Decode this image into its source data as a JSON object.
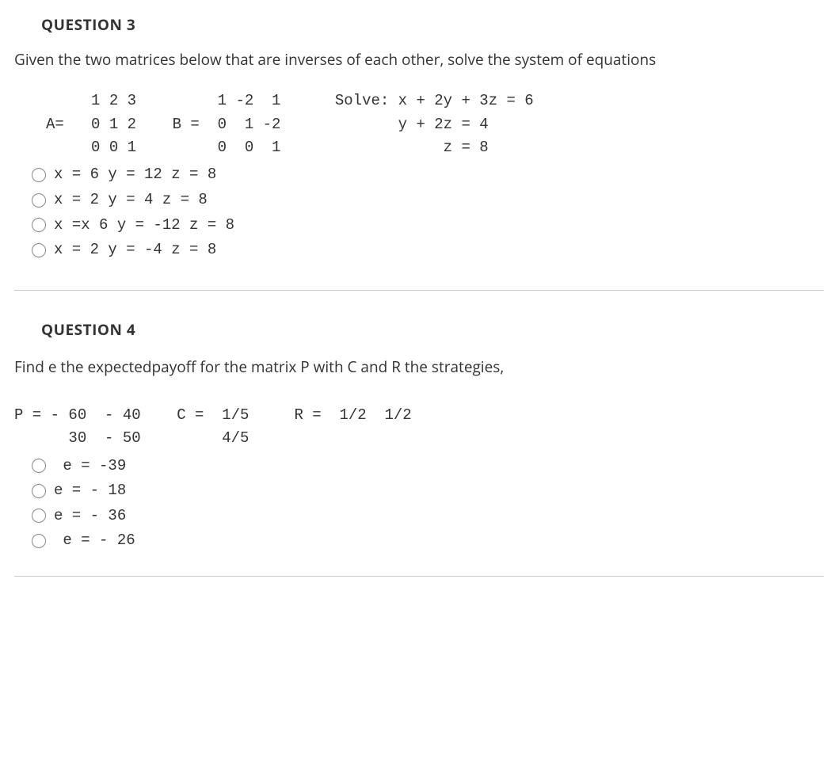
{
  "q3": {
    "title": "QUESTION 3",
    "prompt": "Given the two matrices below that are inverses of each other, solve the system of equations",
    "math_line1": "     1 2 3         1 -2  1      Solve: x + 2y + 3z = 6",
    "math_line2": "A=   0 1 2    B =  0  1 -2             y + 2z = 4",
    "math_line3": "     0 0 1         0  0  1                  z = 8",
    "options": [
      "x = 6 y = 12 z = 8",
      "x = 2 y = 4 z = 8",
      "x =x 6 y = -12 z = 8",
      "x = 2 y = -4 z = 8"
    ]
  },
  "q4": {
    "title": "QUESTION 4",
    "prompt": "Find e the expectedpayoff for the matrix P with C and R the strategies,",
    "math_line1": "P = - 60  - 40    C =  1/5     R =  1/2  1/2",
    "math_line2": "      30  - 50         4/5",
    "options": [
      " e = -39",
      "e = - 18",
      "e = - 36",
      " e = - 26"
    ]
  }
}
